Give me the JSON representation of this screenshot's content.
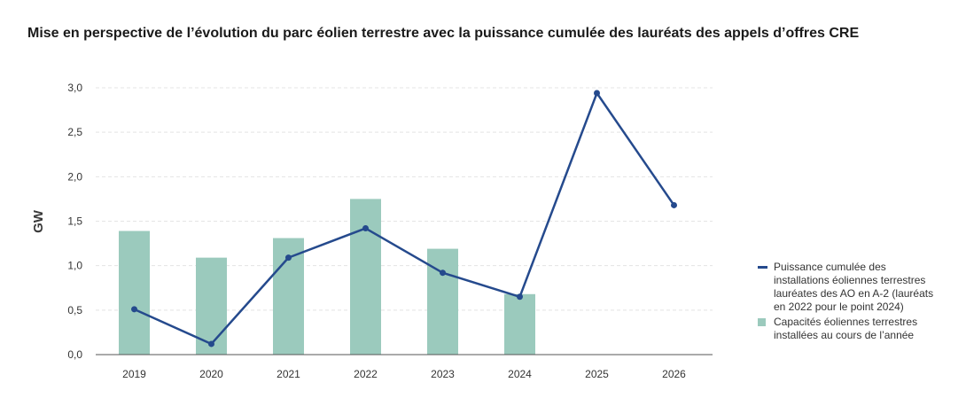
{
  "title": "Mise en perspective de l’évolution du parc éolien terrestre avec la puissance cumulée des lauréats des appels d’offres CRE",
  "colors": {
    "bar": "#9bcabd",
    "line": "#254a8d",
    "grid": "#e4e4e4",
    "axis": "#555555"
  },
  "chart_data": {
    "type": "bar",
    "ylabel": "GW",
    "ylim": [
      0,
      3.0
    ],
    "yticks": [
      "0,0",
      "0,5",
      "1,0",
      "1,5",
      "2,0",
      "2,5",
      "3,0"
    ],
    "ytick_values": [
      0,
      0.5,
      1.0,
      1.5,
      2.0,
      2.5,
      3.0
    ],
    "grid": true,
    "legend_position": "right",
    "categories": [
      "2019",
      "2020",
      "2021",
      "2022",
      "2023",
      "2024",
      "2025",
      "2026"
    ],
    "series": [
      {
        "name": "Puissance cumulée des installations éoliennes terrestres lauréates des AO en A-2 (lauréats en 2022 pour le point 2024)",
        "type": "line",
        "values": [
          0.51,
          0.12,
          1.09,
          1.42,
          0.92,
          0.65,
          2.94,
          1.68
        ]
      },
      {
        "name": "Capacités éoliennes terrestres installées au cours de l’année",
        "type": "bar",
        "values": [
          1.39,
          1.09,
          1.31,
          1.75,
          1.19,
          0.68,
          null,
          null
        ]
      }
    ]
  }
}
